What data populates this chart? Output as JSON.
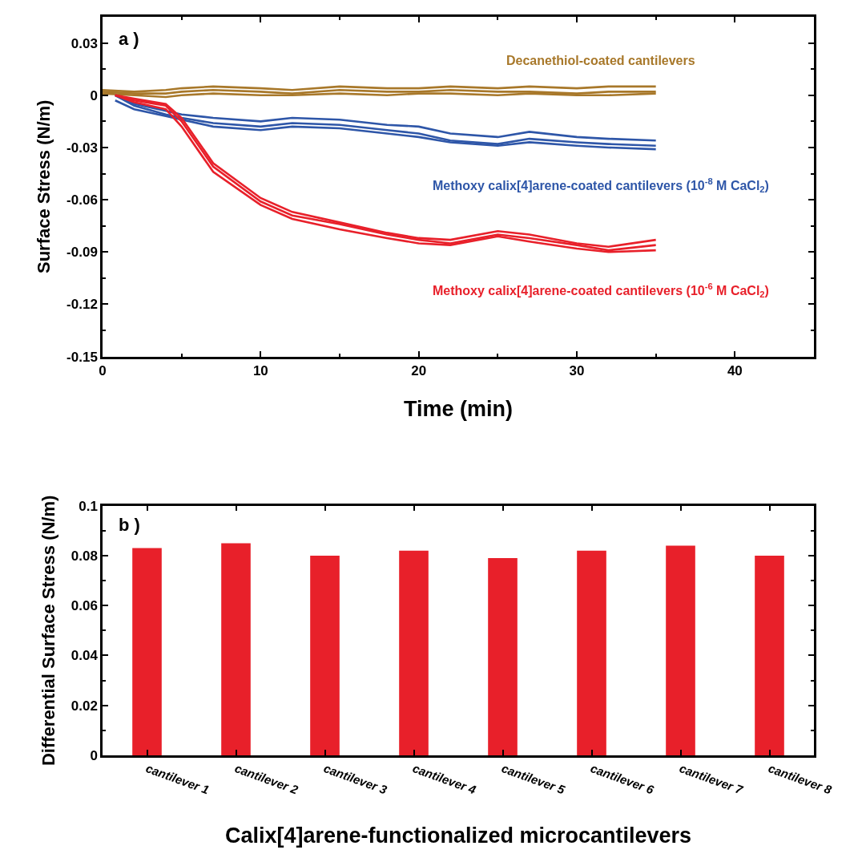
{
  "chart_data": [
    {
      "type": "line",
      "xlabel": "Time (min)",
      "ylabel": "Surface Stress (N/m)",
      "xlim": [
        0,
        45
      ],
      "xticks": [
        0,
        10,
        20,
        30,
        40
      ],
      "ylim": [
        -0.15,
        0.045
      ],
      "yticks": [
        0.03,
        0,
        -0.03,
        -0.06,
        -0.09,
        -0.12,
        -0.15
      ],
      "marker": "none",
      "line_style": "solid",
      "annotations": [
        "a )"
      ],
      "series": [
        {
          "name": "Decanethiol-coated cantilevers",
          "color": "#a8782a",
          "x": [
            0,
            2,
            4,
            5,
            7,
            10,
            12,
            15,
            18,
            20,
            22,
            25,
            27,
            30,
            32,
            35
          ],
          "values": [
            0.003,
            0.002,
            0.003,
            0.004,
            0.005,
            0.004,
            0.003,
            0.005,
            0.004,
            0.004,
            0.005,
            0.004,
            0.005,
            0.004,
            0.005,
            0.005
          ]
        },
        {
          "color": "#a8782a",
          "x": [
            0,
            2,
            4,
            5,
            7,
            10,
            12,
            15,
            18,
            20,
            22,
            25,
            27,
            30,
            32,
            35
          ],
          "values": [
            0.002,
            0.001,
            0.001,
            0.002,
            0.003,
            0.002,
            0.001,
            0.003,
            0.002,
            0.002,
            0.003,
            0.002,
            0.002,
            0.001,
            0.002,
            0.002
          ]
        },
        {
          "color": "#a8782a",
          "x": [
            0,
            2,
            4,
            5,
            7,
            10,
            12,
            15,
            18,
            20,
            22,
            25,
            27,
            30,
            32,
            35
          ],
          "values": [
            0.001,
            0.0,
            -0.001,
            0.0,
            0.001,
            0.0,
            0.0,
            0.001,
            0.0,
            0.001,
            0.001,
            0.0,
            0.001,
            0.0,
            0.0,
            0.001
          ]
        },
        {
          "name": "Methoxy calix[4]arene-coated cantilevers (10$^{-8}$ M CaCl$_{2}$)",
          "color": "#2e56a8",
          "x": [
            0.8,
            2,
            4,
            5,
            7,
            10,
            12,
            15,
            18,
            20,
            22,
            25,
            27,
            30,
            32,
            35
          ],
          "values": [
            0,
            -0.005,
            -0.009,
            -0.011,
            -0.013,
            -0.015,
            -0.013,
            -0.014,
            -0.017,
            -0.018,
            -0.022,
            -0.024,
            -0.021,
            -0.024,
            -0.025,
            -0.026
          ]
        },
        {
          "color": "#2e56a8",
          "x": [
            0.8,
            2,
            4,
            5,
            7,
            10,
            12,
            15,
            18,
            20,
            22,
            25,
            27,
            30,
            32,
            35
          ],
          "values": [
            0,
            -0.006,
            -0.011,
            -0.013,
            -0.016,
            -0.018,
            -0.016,
            -0.017,
            -0.02,
            -0.022,
            -0.026,
            -0.028,
            -0.025,
            -0.027,
            -0.028,
            -0.029
          ]
        },
        {
          "color": "#2e56a8",
          "x": [
            0.8,
            2,
            4,
            5,
            7,
            10,
            12,
            15,
            18,
            20,
            22,
            25,
            27,
            30,
            32,
            35
          ],
          "values": [
            -0.003,
            -0.008,
            -0.012,
            -0.014,
            -0.018,
            -0.02,
            -0.018,
            -0.019,
            -0.022,
            -0.024,
            -0.027,
            -0.029,
            -0.027,
            -0.029,
            -0.03,
            -0.031
          ]
        },
        {
          "name": "Methoxy calix[4]arene-coated cantilevers (10$^{-6}$ M CaCl$_{2}$)",
          "color": "#e8202a",
          "x": [
            0.8,
            2,
            4,
            5,
            7,
            10,
            12,
            15,
            18,
            20,
            22,
            25,
            27,
            30,
            32,
            35
          ],
          "values": [
            0,
            -0.003,
            -0.006,
            -0.015,
            -0.041,
            -0.061,
            -0.069,
            -0.074,
            -0.08,
            -0.083,
            -0.085,
            -0.08,
            -0.082,
            -0.086,
            -0.089,
            -0.086
          ]
        },
        {
          "color": "#e8202a",
          "x": [
            0.8,
            2,
            4,
            5,
            7,
            10,
            12,
            15,
            18,
            20,
            22,
            25,
            27,
            30,
            32,
            35
          ],
          "values": [
            0,
            -0.004,
            -0.008,
            -0.018,
            -0.044,
            -0.063,
            -0.071,
            -0.077,
            -0.082,
            -0.085,
            -0.086,
            -0.081,
            -0.084,
            -0.088,
            -0.09,
            -0.089
          ]
        },
        {
          "color": "#e8202a",
          "x": [
            0.8,
            2,
            4,
            5,
            7,
            10,
            12,
            15,
            18,
            20,
            22,
            25,
            27,
            30,
            32,
            35
          ],
          "values": [
            0,
            -0.002,
            -0.005,
            -0.013,
            -0.039,
            -0.059,
            -0.067,
            -0.073,
            -0.079,
            -0.082,
            -0.083,
            -0.078,
            -0.08,
            -0.085,
            -0.087,
            -0.083
          ]
        }
      ]
    },
    {
      "type": "bar",
      "xlabel": "Calix[4]arene-functionalized microcantilevers",
      "ylabel": "Differential Surface Stress (N/m)",
      "ylim": [
        0,
        0.1
      ],
      "yticks": [
        0,
        0.02,
        0.04,
        0.06,
        0.08,
        0.1
      ],
      "annotations": [
        "b )"
      ],
      "categories": [
        "cantilever 1",
        "cantilever 2",
        "cantilever 3",
        "cantilever 4",
        "cantilever 5",
        "cantilever 6",
        "cantilever 7",
        "cantilever 8"
      ],
      "values": [
        0.083,
        0.085,
        0.08,
        0.082,
        0.079,
        0.082,
        0.084,
        0.08
      ],
      "color": "#e8202a"
    }
  ]
}
